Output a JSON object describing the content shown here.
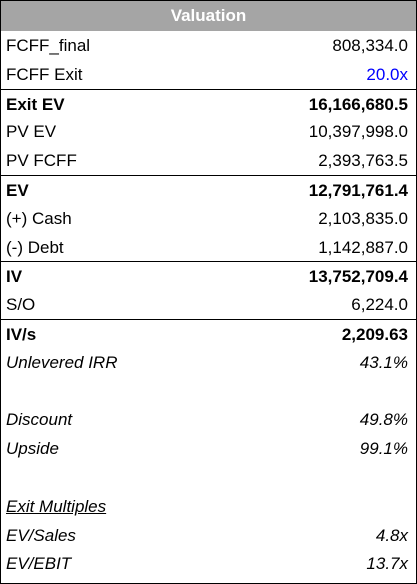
{
  "header": {
    "title": "Valuation"
  },
  "rows": [
    {
      "label": "FCFF_final",
      "value": "808,334.0"
    },
    {
      "label": "FCFF Exit",
      "value": "20.0x",
      "value_color": "#0000ff"
    },
    {
      "label": "Exit EV",
      "value": "16,166,680.5",
      "bold": true,
      "border_top": true
    },
    {
      "label": "PV EV",
      "value": "10,397,998.0"
    },
    {
      "label": "PV FCFF",
      "value": "2,393,763.5"
    },
    {
      "label": "EV",
      "value": "12,791,761.4",
      "bold": true,
      "border_top": true
    },
    {
      "label": "(+) Cash",
      "value": "2,103,835.0"
    },
    {
      "label": "(-) Debt",
      "value": "1,142,887.0"
    },
    {
      "label": "IV",
      "value": "13,752,709.4",
      "bold": true,
      "border_top": true
    },
    {
      "label": "S/O",
      "value": "6,224.0"
    },
    {
      "label": "IV/s",
      "value": "2,209.63",
      "bold": true,
      "border_top": true
    },
    {
      "label": "Unlevered IRR",
      "value": "43.1%",
      "italic": true
    },
    {
      "label": "Discount",
      "value": "49.8%",
      "italic": true,
      "gap_before": true
    },
    {
      "label": "Upside",
      "value": "99.1%",
      "italic": true
    },
    {
      "label": "Exit Multiples",
      "italic": true,
      "underline": true,
      "gap_before": true
    },
    {
      "label": "EV/Sales",
      "value": "4.8x",
      "italic": true
    },
    {
      "label": "EV/EBIT",
      "value": "13.7x",
      "italic": true
    }
  ]
}
